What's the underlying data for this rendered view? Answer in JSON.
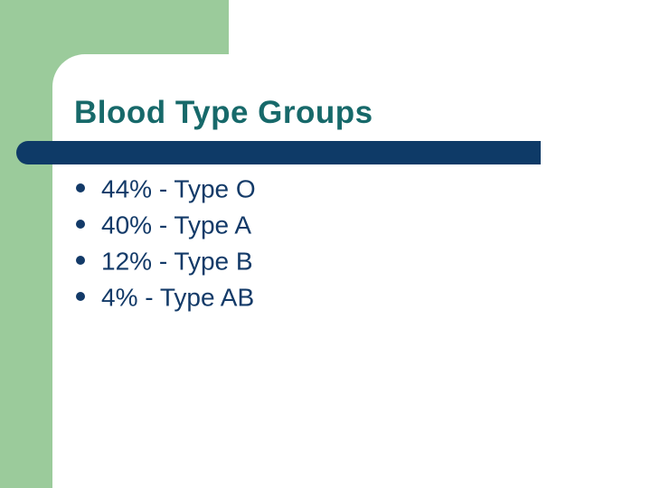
{
  "slide": {
    "title": "Blood Type Groups",
    "bullets": [
      "44% - Type O",
      "40% - Type A",
      "12% - Type B",
      "4% - Type AB"
    ],
    "colors": {
      "accent_green": "#9BCB9B",
      "bar_navy": "#0E3A67",
      "title_teal": "#17696A",
      "text_navy": "#133A68"
    }
  }
}
